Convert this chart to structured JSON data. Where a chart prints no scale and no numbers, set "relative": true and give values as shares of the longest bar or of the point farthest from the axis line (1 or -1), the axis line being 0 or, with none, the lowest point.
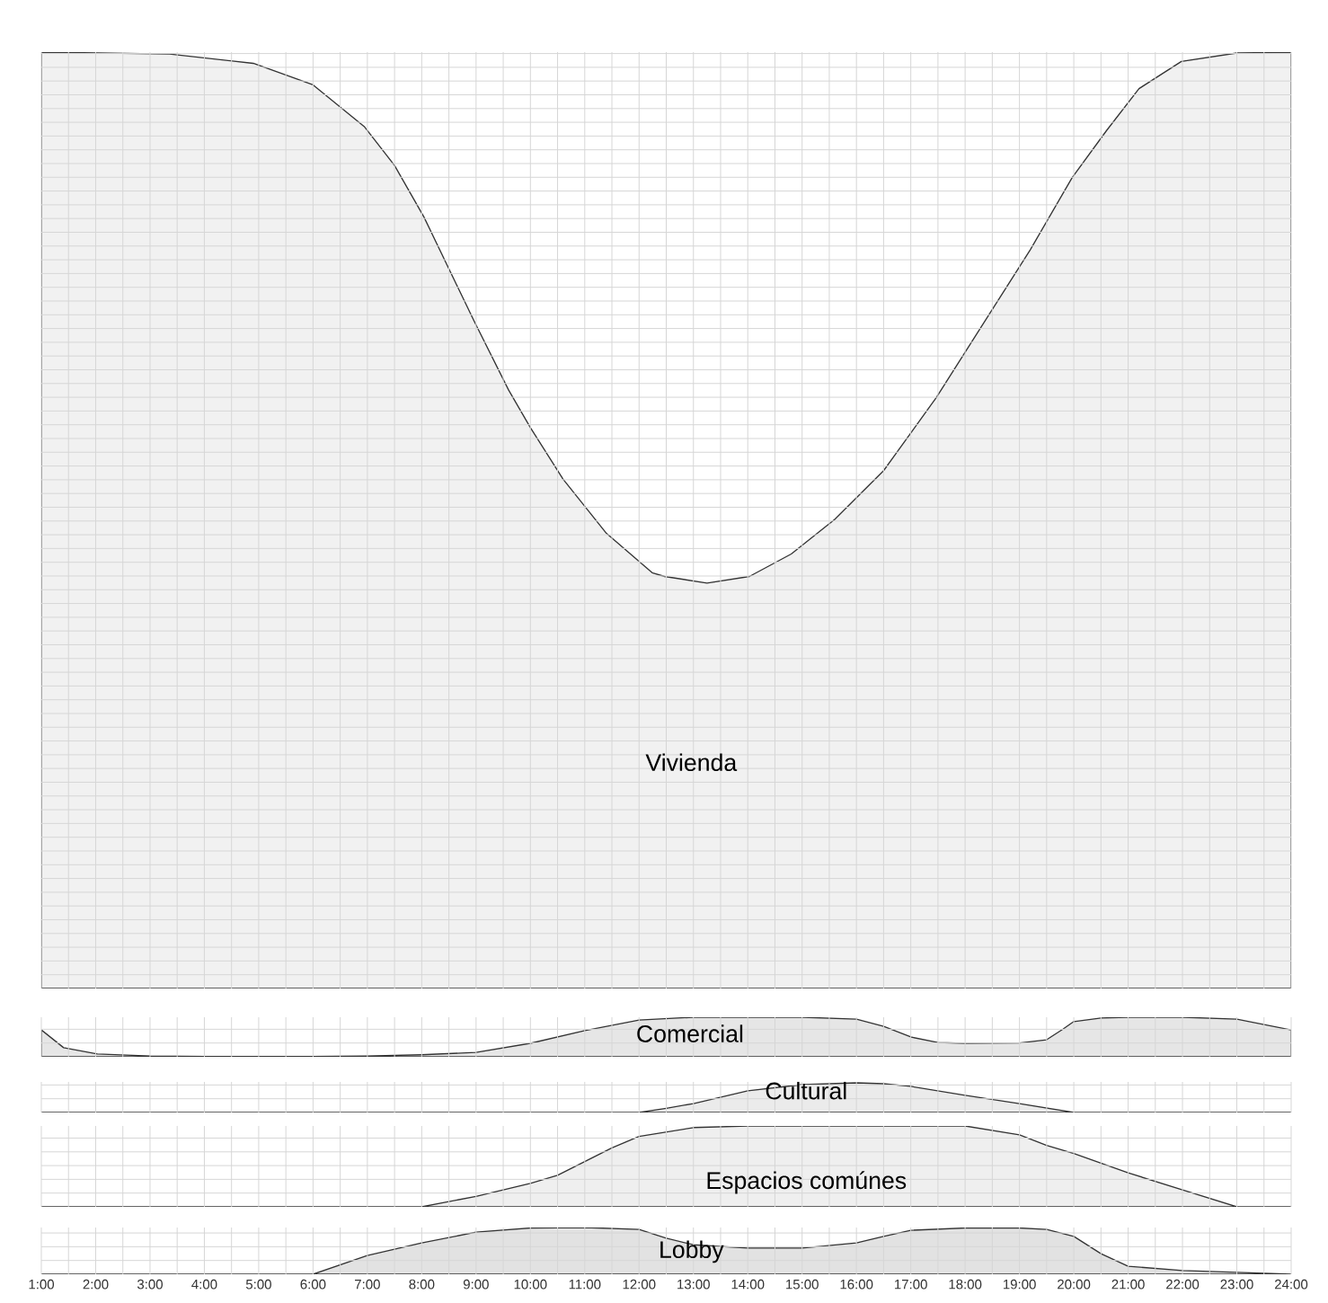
{
  "chart_data": [
    {
      "type": "area",
      "title": "Vivienda",
      "relative": true,
      "color": "#333333",
      "grid": true,
      "tick_labels": false,
      "xlim": [
        1,
        24
      ],
      "xticks": [
        {
          "value": 1,
          "label": null
        },
        {
          "value": 2,
          "label": null
        },
        {
          "value": 3,
          "label": null
        },
        {
          "value": 4,
          "label": null
        },
        {
          "value": 5,
          "label": null
        },
        {
          "value": 6,
          "label": null
        },
        {
          "value": 7,
          "label": null
        },
        {
          "value": 8,
          "label": null
        },
        {
          "value": 9,
          "label": null
        },
        {
          "value": 10,
          "label": null
        },
        {
          "value": 11,
          "label": null
        },
        {
          "value": 12,
          "label": null
        },
        {
          "value": 13,
          "label": null
        },
        {
          "value": 14,
          "label": null
        },
        {
          "value": 15,
          "label": null
        },
        {
          "value": 16,
          "label": null
        },
        {
          "value": 17,
          "label": null
        },
        {
          "value": 18,
          "label": null
        },
        {
          "value": 19,
          "label": null
        },
        {
          "value": 20,
          "label": null
        },
        {
          "value": 21,
          "label": null
        },
        {
          "value": 22,
          "label": null
        },
        {
          "value": 23,
          "label": null
        },
        {
          "value": 24,
          "label": null
        }
      ],
      "x": [
        1,
        3.36,
        4.9,
        6.0,
        6.95,
        7.5,
        8.04,
        8.97,
        9.6,
        10.0,
        10.6,
        11.4,
        12.24,
        12.47,
        13.25,
        14.03,
        14.8,
        15.6,
        16.5,
        17.47,
        18.4,
        19.2,
        19.97,
        20.6,
        21.2,
        21.98,
        23.0,
        24
      ],
      "values": [
        1.0,
        0.998,
        0.988,
        0.965,
        0.92,
        0.879,
        0.824,
        0.712,
        0.639,
        0.599,
        0.544,
        0.486,
        0.444,
        0.44,
        0.433,
        0.44,
        0.464,
        0.501,
        0.553,
        0.631,
        0.716,
        0.789,
        0.866,
        0.916,
        0.961,
        0.99,
        0.999,
        1.0
      ]
    },
    {
      "type": "area",
      "title": "Comercial",
      "relative": true,
      "color": "#333333",
      "grid": true,
      "tick_labels": false,
      "xlim": [
        1,
        24
      ],
      "xticks": [
        {
          "value": 1,
          "label": null
        },
        {
          "value": 2,
          "label": null
        },
        {
          "value": 3,
          "label": null
        },
        {
          "value": 4,
          "label": null
        },
        {
          "value": 5,
          "label": null
        },
        {
          "value": 6,
          "label": null
        },
        {
          "value": 7,
          "label": null
        },
        {
          "value": 8,
          "label": null
        },
        {
          "value": 9,
          "label": null
        },
        {
          "value": 10,
          "label": null
        },
        {
          "value": 11,
          "label": null
        },
        {
          "value": 12,
          "label": null
        },
        {
          "value": 13,
          "label": null
        },
        {
          "value": 14,
          "label": null
        },
        {
          "value": 15,
          "label": null
        },
        {
          "value": 16,
          "label": null
        },
        {
          "value": 17,
          "label": null
        },
        {
          "value": 18,
          "label": null
        },
        {
          "value": 19,
          "label": null
        },
        {
          "value": 20,
          "label": null
        },
        {
          "value": 21,
          "label": null
        },
        {
          "value": 22,
          "label": null
        },
        {
          "value": 23,
          "label": null
        },
        {
          "value": 24,
          "label": null
        }
      ],
      "x": [
        1,
        1.41,
        2.03,
        3,
        4,
        5,
        6,
        7,
        8,
        9,
        10,
        11,
        12,
        13,
        14,
        15,
        16,
        16.5,
        17,
        17.5,
        18,
        19,
        19.5,
        19.8,
        20,
        20.5,
        21,
        22,
        23,
        24
      ],
      "values": [
        0.68,
        0.23,
        0.07,
        0.02,
        0.01,
        0.01,
        0.01,
        0.02,
        0.05,
        0.11,
        0.34,
        0.66,
        0.93,
        1.0,
        1.0,
        1.0,
        0.95,
        0.77,
        0.5,
        0.36,
        0.34,
        0.35,
        0.43,
        0.7,
        0.89,
        0.98,
        1.0,
        1.0,
        0.95,
        0.68
      ]
    },
    {
      "type": "area",
      "title": "Cultural",
      "relative": true,
      "color": "#333333",
      "grid": true,
      "tick_labels": false,
      "xlim": [
        1,
        24
      ],
      "xticks": [
        {
          "value": 1,
          "label": null
        },
        {
          "value": 2,
          "label": null
        },
        {
          "value": 3,
          "label": null
        },
        {
          "value": 4,
          "label": null
        },
        {
          "value": 5,
          "label": null
        },
        {
          "value": 6,
          "label": null
        },
        {
          "value": 7,
          "label": null
        },
        {
          "value": 8,
          "label": null
        },
        {
          "value": 9,
          "label": null
        },
        {
          "value": 10,
          "label": null
        },
        {
          "value": 11,
          "label": null
        },
        {
          "value": 12,
          "label": null
        },
        {
          "value": 13,
          "label": null
        },
        {
          "value": 14,
          "label": null
        },
        {
          "value": 15,
          "label": null
        },
        {
          "value": 16,
          "label": null
        },
        {
          "value": 17,
          "label": null
        },
        {
          "value": 18,
          "label": null
        },
        {
          "value": 19,
          "label": null
        },
        {
          "value": 20,
          "label": null
        },
        {
          "value": 21,
          "label": null
        },
        {
          "value": 22,
          "label": null
        },
        {
          "value": 23,
          "label": null
        },
        {
          "value": 24,
          "label": null
        }
      ],
      "x": [
        1,
        12,
        12.5,
        13,
        14,
        15,
        16,
        16.5,
        17,
        18,
        19,
        20,
        24
      ],
      "values": [
        0,
        0,
        0.14,
        0.3,
        0.73,
        0.94,
        1.0,
        0.97,
        0.88,
        0.58,
        0.3,
        0,
        0
      ]
    },
    {
      "type": "area",
      "title": "Espacios comúnes",
      "relative": true,
      "color": "#333333",
      "grid": true,
      "tick_labels": false,
      "xlim": [
        1,
        24
      ],
      "xticks": [
        {
          "value": 1,
          "label": null
        },
        {
          "value": 2,
          "label": null
        },
        {
          "value": 3,
          "label": null
        },
        {
          "value": 4,
          "label": null
        },
        {
          "value": 5,
          "label": null
        },
        {
          "value": 6,
          "label": null
        },
        {
          "value": 7,
          "label": null
        },
        {
          "value": 8,
          "label": null
        },
        {
          "value": 9,
          "label": null
        },
        {
          "value": 10,
          "label": null
        },
        {
          "value": 11,
          "label": null
        },
        {
          "value": 12,
          "label": null
        },
        {
          "value": 13,
          "label": null
        },
        {
          "value": 14,
          "label": null
        },
        {
          "value": 15,
          "label": null
        },
        {
          "value": 16,
          "label": null
        },
        {
          "value": 17,
          "label": null
        },
        {
          "value": 18,
          "label": null
        },
        {
          "value": 19,
          "label": null
        },
        {
          "value": 20,
          "label": null
        },
        {
          "value": 21,
          "label": null
        },
        {
          "value": 22,
          "label": null
        },
        {
          "value": 23,
          "label": null
        },
        {
          "value": 24,
          "label": null
        }
      ],
      "x": [
        1,
        8,
        9,
        10,
        10.5,
        11,
        11.5,
        12,
        13,
        14,
        15,
        16,
        17,
        18,
        19,
        19.5,
        20,
        21,
        22,
        23,
        24
      ],
      "values": [
        0,
        0,
        0.13,
        0.29,
        0.39,
        0.56,
        0.73,
        0.87,
        0.98,
        1.0,
        1.0,
        1.0,
        1.0,
        1.0,
        0.89,
        0.76,
        0.66,
        0.42,
        0.21,
        0,
        0
      ]
    },
    {
      "type": "area",
      "title": "Lobby",
      "relative": true,
      "color": "#333333",
      "grid": true,
      "tick_labels": "x",
      "xlim": [
        1,
        24
      ],
      "xticks": [
        {
          "value": 1,
          "label": "1:00"
        },
        {
          "value": 2,
          "label": "2:00"
        },
        {
          "value": 3,
          "label": "3:00"
        },
        {
          "value": 4,
          "label": "4:00"
        },
        {
          "value": 5,
          "label": "5:00"
        },
        {
          "value": 6,
          "label": "6:00"
        },
        {
          "value": 7,
          "label": "7:00"
        },
        {
          "value": 8,
          "label": "8:00"
        },
        {
          "value": 9,
          "label": "9:00"
        },
        {
          "value": 10,
          "label": "10:00"
        },
        {
          "value": 11,
          "label": "11:00"
        },
        {
          "value": 12,
          "label": "12:00"
        },
        {
          "value": 13,
          "label": "13:00"
        },
        {
          "value": 14,
          "label": "14:00"
        },
        {
          "value": 15,
          "label": "15:00"
        },
        {
          "value": 16,
          "label": "16:00"
        },
        {
          "value": 17,
          "label": "17:00"
        },
        {
          "value": 18,
          "label": "18:00"
        },
        {
          "value": 19,
          "label": "19:00"
        },
        {
          "value": 20,
          "label": "20:00"
        },
        {
          "value": 21,
          "label": "21:00"
        },
        {
          "value": 22,
          "label": "22:00"
        },
        {
          "value": 23,
          "label": "23:00"
        },
        {
          "value": 24,
          "label": "24:00"
        }
      ],
      "x": [
        1,
        6,
        7,
        8,
        9,
        10,
        11,
        12,
        12.5,
        13,
        14,
        15,
        16,
        16.5,
        17,
        18,
        19,
        19.5,
        20,
        20.5,
        21,
        22,
        23,
        24
      ],
      "values": [
        0,
        0,
        0.4,
        0.67,
        0.9,
        0.99,
        1.0,
        0.96,
        0.77,
        0.63,
        0.56,
        0.56,
        0.67,
        0.81,
        0.94,
        0.99,
        0.99,
        0.96,
        0.81,
        0.44,
        0.17,
        0.08,
        0.04,
        0
      ]
    }
  ]
}
